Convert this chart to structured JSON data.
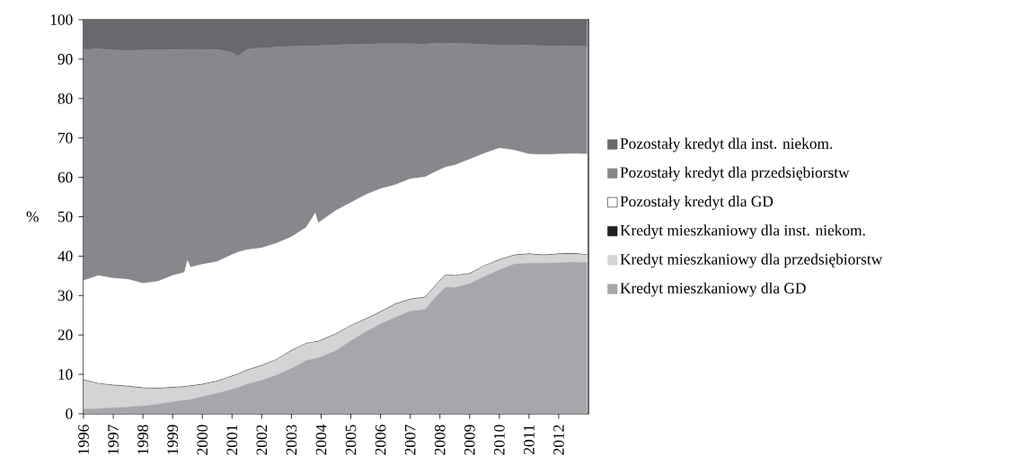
{
  "chart_data": {
    "type": "area",
    "stacked": true,
    "ylabel": "%",
    "xlim": [
      1996,
      2013
    ],
    "ylim": [
      0,
      100
    ],
    "yticks": [
      0,
      10,
      20,
      30,
      40,
      50,
      60,
      70,
      80,
      90,
      100
    ],
    "xticks": [
      {
        "value": 1996,
        "label": "1996"
      },
      {
        "value": 1997,
        "label": "1997"
      },
      {
        "value": 1998,
        "label": "1998"
      },
      {
        "value": 1999,
        "label": "1999"
      },
      {
        "value": 2000,
        "label": "2000"
      },
      {
        "value": 2001,
        "label": "2001"
      },
      {
        "value": 2002,
        "label": "2002"
      },
      {
        "value": 2003,
        "label": "2003"
      },
      {
        "value": 2004,
        "label": "2004"
      },
      {
        "value": 2005,
        "label": "2005"
      },
      {
        "value": 2006,
        "label": "2006"
      },
      {
        "value": 2007,
        "label": "2007"
      },
      {
        "value": 2008,
        "label": "2008"
      },
      {
        "value": 2009,
        "label": "2009"
      },
      {
        "value": 2010,
        "label": "2010"
      },
      {
        "value": 2011,
        "label": "2011"
      },
      {
        "value": 2012,
        "label": "2012"
      }
    ],
    "legend": "right",
    "grid": false,
    "x": [
      1996.0,
      1996.5,
      1997.0,
      1997.5,
      1998.0,
      1998.5,
      1999.0,
      1999.4,
      1999.5,
      1999.6,
      2000.0,
      2000.5,
      2001.0,
      2001.2,
      2001.5,
      2002.0,
      2002.5,
      2003.0,
      2003.5,
      2003.8,
      2003.9,
      2004.5,
      2005.0,
      2005.5,
      2006.0,
      2006.5,
      2007.0,
      2007.5,
      2007.9,
      2008.2,
      2008.5,
      2009.0,
      2009.5,
      2010.0,
      2010.5,
      2011.0,
      2011.5,
      2012.0,
      2012.5,
      2012.95
    ],
    "series": [
      {
        "name": "Kredyt mieszkaniowy dla GD",
        "color": "#a6a7ab",
        "values": [
          1.2,
          1.3,
          1.5,
          1.7,
          2.0,
          2.4,
          3.0,
          3.4,
          3.5,
          3.6,
          4.3,
          5.2,
          6.2,
          6.6,
          7.5,
          8.5,
          9.8,
          11.5,
          13.5,
          14.0,
          14.2,
          16.0,
          18.5,
          20.8,
          22.8,
          24.5,
          26.0,
          26.5,
          30.0,
          32.2,
          32.0,
          33.0,
          34.8,
          36.5,
          38.0,
          38.2,
          38.2,
          38.3,
          38.5,
          38.4
        ]
      },
      {
        "name": "Kredyt mieszkaniowy dla przedsiębiorstw",
        "color": "#d3d4d6",
        "values": [
          7.3,
          6.3,
          5.7,
          5.2,
          4.5,
          4.0,
          3.6,
          3.4,
          3.4,
          3.4,
          3.1,
          3.0,
          3.3,
          3.4,
          3.5,
          3.7,
          3.9,
          4.5,
          4.3,
          4.2,
          4.1,
          4.2,
          3.8,
          3.2,
          3.0,
          3.3,
          3.0,
          3.0,
          3.0,
          3.0,
          3.0,
          2.5,
          2.7,
          2.5,
          2.2,
          2.3,
          2.0,
          2.2,
          2.1,
          1.9
        ]
      },
      {
        "name": "Kredyt mieszkaniowy dla inst. niekom.",
        "color": "#231f20",
        "values": [
          0.1,
          0.1,
          0.1,
          0.1,
          0.1,
          0.1,
          0.1,
          0.1,
          0.1,
          0.1,
          0.1,
          0.1,
          0.1,
          0.1,
          0.1,
          0.1,
          0.1,
          0.1,
          0.1,
          0.1,
          0.1,
          0.1,
          0.1,
          0.1,
          0.1,
          0.1,
          0.1,
          0.1,
          0.1,
          0.1,
          0.1,
          0.1,
          0.1,
          0.1,
          0.1,
          0.1,
          0.1,
          0.1,
          0.1,
          0.1
        ]
      },
      {
        "name": "Pozostały kredyt dla GD",
        "color": "#ffffff",
        "values": [
          25.2,
          27.4,
          27.1,
          27.1,
          26.5,
          27.1,
          28.4,
          29.0,
          31.9,
          30.1,
          30.4,
          30.3,
          30.8,
          30.9,
          30.5,
          29.8,
          29.5,
          28.8,
          29.4,
          32.6,
          30.0,
          31.3,
          31.2,
          31.5,
          31.2,
          30.2,
          30.5,
          30.5,
          28.5,
          27.3,
          28.0,
          29.0,
          28.5,
          28.3,
          26.6,
          25.3,
          25.5,
          25.3,
          25.3,
          25.5
        ]
      },
      {
        "name": "Pozostały kredyt dla przedsiębiorstw",
        "color": "#87888c",
        "values": [
          58.6,
          57.5,
          57.9,
          58.1,
          59.2,
          58.8,
          57.3,
          56.6,
          53.6,
          55.3,
          54.6,
          53.8,
          51.3,
          49.7,
          50.9,
          50.7,
          49.7,
          48.3,
          46.0,
          42.5,
          45.0,
          42.0,
          40.1,
          38.2,
          36.8,
          35.8,
          34.3,
          33.7,
          32.5,
          31.5,
          30.9,
          29.3,
          27.6,
          26.2,
          26.7,
          27.6,
          27.6,
          27.5,
          27.3,
          27.3
        ]
      },
      {
        "name": "Pozostały kredyt dla inst. niekom.",
        "color": "#68696d",
        "values": [
          7.7,
          7.5,
          7.8,
          7.9,
          7.8,
          7.7,
          7.7,
          7.6,
          7.6,
          7.6,
          7.6,
          7.7,
          8.4,
          9.4,
          7.6,
          7.3,
          7.1,
          6.9,
          6.8,
          6.7,
          6.7,
          6.5,
          6.4,
          6.3,
          6.2,
          6.2,
          6.2,
          6.3,
          6.0,
          6.0,
          6.1,
          6.2,
          6.4,
          6.5,
          6.5,
          6.6,
          6.7,
          6.7,
          6.8,
          6.9
        ]
      }
    ]
  }
}
